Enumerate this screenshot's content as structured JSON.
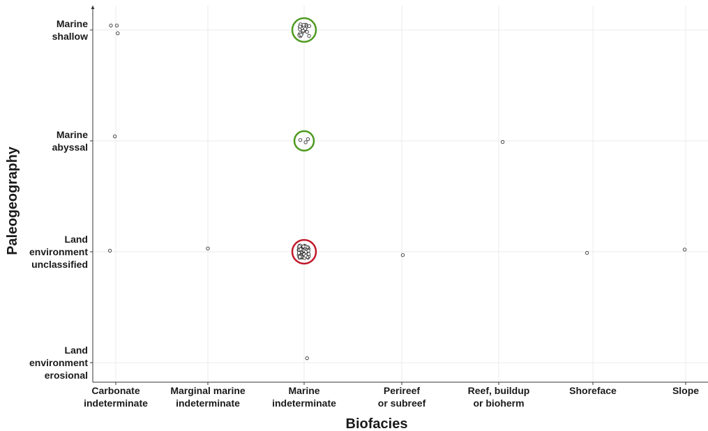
{
  "chart_data": {
    "type": "scatter",
    "title": "",
    "xlabel": "Biofacies",
    "ylabel": "Paleogeography",
    "categories_x": [
      [
        "Carbonate",
        "indeterminate"
      ],
      [
        "Marginal marine",
        "indeterminate"
      ],
      [
        "Marine",
        "indeterminate"
      ],
      [
        "Perireef",
        "or subreef"
      ],
      [
        "Reef, buildup",
        "or bioherm"
      ],
      [
        "Shoreface"
      ],
      [
        "Slope"
      ]
    ],
    "categories_y": [
      [
        "Marine",
        "shallow"
      ],
      [
        "Marine",
        "abyssal"
      ],
      [
        "Land",
        "environment",
        "unclassified"
      ],
      [
        "Land",
        "environment",
        "erosional"
      ]
    ],
    "grid": true,
    "points": [
      {
        "x": 0,
        "y": 0,
        "dx": -0.05,
        "dy": 0.04
      },
      {
        "x": 0,
        "y": 0,
        "dx": 0.01,
        "dy": 0.04
      },
      {
        "x": 0,
        "y": 0,
        "dx": 0.02,
        "dy": -0.03
      },
      {
        "x": 0,
        "y": 1,
        "dx": -0.01,
        "dy": 0.04
      },
      {
        "x": 0,
        "y": 2,
        "dx": -0.06,
        "dy": 0.01
      },
      {
        "x": 1,
        "y": 2,
        "dx": 0.0,
        "dy": 0.03
      },
      {
        "x": 2,
        "y": 3,
        "dx": 0.03,
        "dy": 0.04
      },
      {
        "x": 3,
        "y": 2,
        "dx": 0.01,
        "dy": -0.03
      },
      {
        "x": 4,
        "y": 1,
        "dx": 0.04,
        "dy": -0.01
      },
      {
        "x": 5,
        "y": 2,
        "dx": -0.06,
        "dy": -0.01
      },
      {
        "x": 6,
        "y": 2,
        "dx": -0.01,
        "dy": 0.02
      }
    ],
    "clusters": [
      {
        "x": 2,
        "y": 0,
        "count": 28,
        "circle_color": "#4d9a1f"
      },
      {
        "x": 2,
        "y": 1,
        "count": 3,
        "circle_color": "#4d9a1f"
      },
      {
        "x": 2,
        "y": 2,
        "count": 60,
        "circle_color": "#c0182a"
      }
    ]
  }
}
